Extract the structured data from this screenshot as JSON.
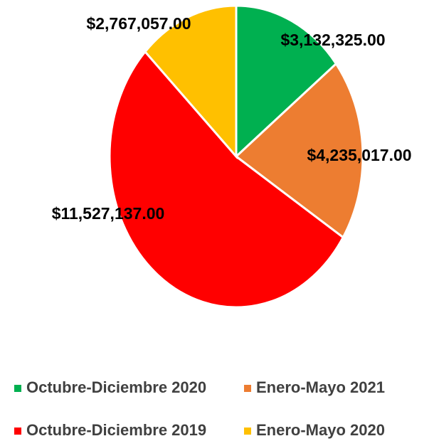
{
  "chart_data": {
    "type": "pie",
    "categories": [
      "Octubre-Diciembre 2020",
      "Enero-Mayo 2021",
      "Octubre-Diciembre 2019",
      "Enero-Mayo 2020"
    ],
    "values": [
      3132325,
      4235017,
      11527137,
      2767057
    ],
    "value_labels": [
      "$3,132,325.00",
      "$4,235,017.00",
      "$11,527,137.00",
      "$2,767,057.00"
    ],
    "colors": [
      "#00b050",
      "#ed7d31",
      "#ff0000",
      "#ffc000"
    ],
    "legend": "bottom"
  }
}
